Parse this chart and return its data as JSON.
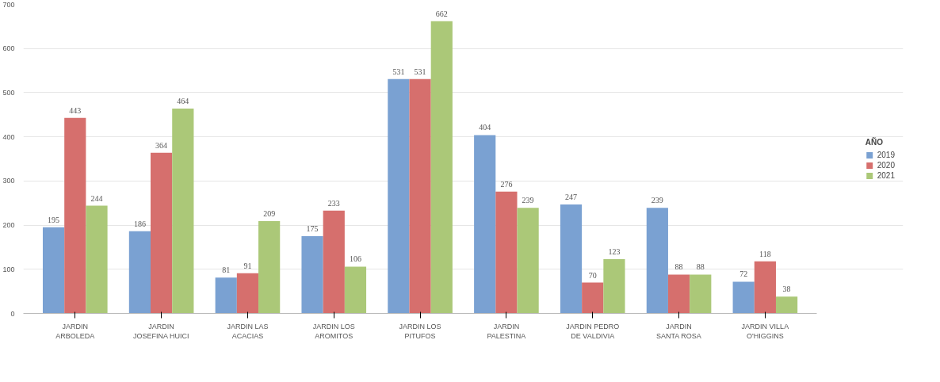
{
  "chart_data": {
    "type": "bar",
    "categories": [
      "JARDIN ARBOLEDA",
      "JARDIN JOSEFINA HUICI",
      "JARDIN LAS ACACIAS",
      "JARDIN LOS AROMITOS",
      "JARDIN LOS PITUFOS",
      "JARDIN PALESTINA",
      "JARDIN PEDRO DE VALDIVIA",
      "JARDIN SANTA ROSA",
      "JARDIN VILLA O'HIGGINS"
    ],
    "series": [
      {
        "name": "2019",
        "color": "#7aa1d2",
        "values": [
          195,
          186,
          81,
          175,
          531,
          404,
          247,
          239,
          72
        ]
      },
      {
        "name": "2020",
        "color": "#d66f6d",
        "values": [
          443,
          364,
          91,
          233,
          531,
          276,
          70,
          88,
          118
        ]
      },
      {
        "name": "2021",
        "color": "#abc878",
        "values": [
          244,
          464,
          209,
          106,
          662,
          239,
          123,
          88,
          38
        ]
      }
    ],
    "legend_title": "AÑO",
    "ylim": [
      0,
      700
    ],
    "yticks": [
      0,
      100,
      200,
      300,
      400,
      500,
      600,
      700
    ],
    "grid": "y",
    "legend": "right",
    "data_labels": true
  }
}
